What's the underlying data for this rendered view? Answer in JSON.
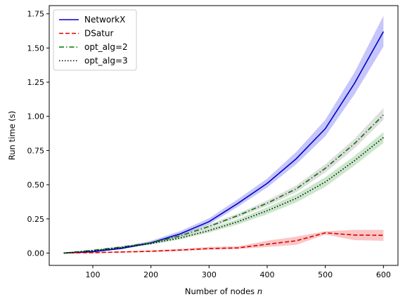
{
  "chart_data": {
    "type": "line",
    "xlabel": "Number of nodes",
    "xlabel_var": "n",
    "ylabel": "Run time (s)",
    "xlim": [
      25,
      625
    ],
    "ylim": [
      -0.09,
      1.81
    ],
    "xticks": [
      100,
      200,
      300,
      400,
      500,
      600
    ],
    "yticks": [
      0.0,
      0.25,
      0.5,
      0.75,
      1.0,
      1.25,
      1.5,
      1.75
    ],
    "grid": false,
    "legend_position": "top-left",
    "x": [
      50,
      100,
      150,
      200,
      250,
      300,
      350,
      400,
      450,
      500,
      550,
      600
    ],
    "series": [
      {
        "name": "NetworkX",
        "color": "#0000cc",
        "dash": "solid",
        "values": [
          0.0,
          0.01,
          0.035,
          0.075,
          0.14,
          0.23,
          0.365,
          0.51,
          0.69,
          0.91,
          1.24,
          1.62
        ],
        "band_low": [
          0.0,
          0.008,
          0.028,
          0.065,
          0.125,
          0.21,
          0.34,
          0.48,
          0.65,
          0.855,
          1.16,
          1.51
        ],
        "band_high": [
          0.005,
          0.017,
          0.045,
          0.09,
          0.16,
          0.255,
          0.395,
          0.545,
          0.74,
          0.975,
          1.32,
          1.735
        ],
        "band_color": "#3333ee"
      },
      {
        "name": "DSatur",
        "color": "#dd0000",
        "dash": "dashed",
        "values": [
          0.0,
          0.003,
          0.008,
          0.013,
          0.022,
          0.033,
          0.038,
          0.065,
          0.09,
          0.148,
          0.132,
          0.13
        ],
        "band_low": [
          0.0,
          0.0,
          0.004,
          0.008,
          0.015,
          0.024,
          0.03,
          0.045,
          0.06,
          0.135,
          0.095,
          0.09
        ],
        "band_high": [
          0.003,
          0.007,
          0.013,
          0.02,
          0.03,
          0.045,
          0.05,
          0.09,
          0.12,
          0.16,
          0.17,
          0.17
        ],
        "band_color": "#ee3333"
      },
      {
        "name": "opt_alg=2",
        "color": "#007700",
        "dash": "dashdot",
        "values": [
          0.0,
          0.02,
          0.045,
          0.075,
          0.125,
          0.195,
          0.275,
          0.365,
          0.47,
          0.62,
          0.8,
          1.01
        ],
        "band_low": [
          0.0,
          0.016,
          0.04,
          0.068,
          0.115,
          0.18,
          0.26,
          0.345,
          0.445,
          0.59,
          0.765,
          0.975
        ],
        "band_high": [
          0.004,
          0.024,
          0.05,
          0.082,
          0.135,
          0.21,
          0.29,
          0.385,
          0.495,
          0.65,
          0.835,
          1.06
        ],
        "band_color": "#888888"
      },
      {
        "name": "opt_alg=3",
        "color": "#000000",
        "dash": "dotted",
        "values": [
          0.0,
          0.017,
          0.04,
          0.07,
          0.11,
          0.165,
          0.23,
          0.31,
          0.4,
          0.52,
          0.675,
          0.845
        ],
        "band_low": [
          0.0,
          0.013,
          0.034,
          0.062,
          0.1,
          0.15,
          0.21,
          0.285,
          0.37,
          0.485,
          0.64,
          0.805
        ],
        "band_high": [
          0.003,
          0.021,
          0.046,
          0.078,
          0.12,
          0.18,
          0.25,
          0.335,
          0.43,
          0.555,
          0.71,
          0.885
        ],
        "band_color": "#44aa44"
      }
    ]
  }
}
